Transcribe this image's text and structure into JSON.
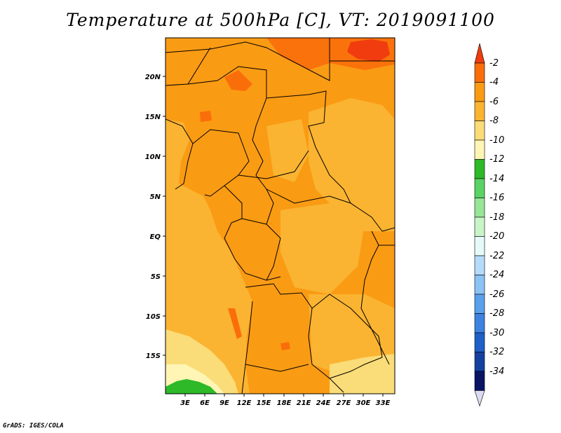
{
  "title": "Temperature at 500hPa [C], VT: 2019091100",
  "credit": "GrADS: IGES/COLA",
  "map": {
    "lat_labels": [
      "20N",
      "15N",
      "10N",
      "5N",
      "EQ",
      "5S",
      "10S",
      "15S"
    ],
    "lon_labels": [
      "3E",
      "6E",
      "9E",
      "12E",
      "15E",
      "18E",
      "21E",
      "24E",
      "27E",
      "30E",
      "33E"
    ]
  },
  "colorbar": {
    "labels": [
      "-2",
      "-4",
      "-6",
      "-8",
      "-10",
      "-12",
      "-14",
      "-16",
      "-18",
      "-20",
      "-22",
      "-24",
      "-26",
      "-28",
      "-30",
      "-32",
      "-34"
    ],
    "colors": [
      "#f03c0f",
      "#fa6e0a",
      "#fa9b14",
      "#fab432",
      "#fadc78",
      "#fff5b4",
      "#2db928",
      "#5ad264",
      "#96e696",
      "#c8f5c8",
      "#e6fafa",
      "#b4dcfa",
      "#8cc3f5",
      "#5aa0eb",
      "#3c82e1",
      "#1e5fc8",
      "#1441a0",
      "#0a1464",
      "#dcdcf0"
    ]
  }
}
